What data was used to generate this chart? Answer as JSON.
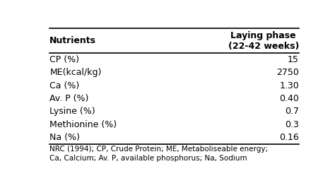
{
  "col_headers": [
    "Nutrients",
    "Laying phase\n(22-42 weeks)"
  ],
  "rows": [
    [
      "CP (%)",
      "15"
    ],
    [
      "ME(kcal/kg)",
      "2750"
    ],
    [
      "Ca (%)",
      "1.30"
    ],
    [
      "Av. P (%)",
      "0.40"
    ],
    [
      "Lysine (%)",
      "0.7"
    ],
    [
      "Methionine (%)",
      "0.3"
    ],
    [
      "Na (%)",
      "0.16"
    ]
  ],
  "footnote": "NRC (1994); CP, Crude Protein; ME, Metaboliseable energy;\nCa, Calcium; Av. P, available phosphorus; Na, Sodium",
  "bg_color": "#ffffff",
  "header_fontsize": 9,
  "row_fontsize": 9,
  "footnote_fontsize": 7.5
}
